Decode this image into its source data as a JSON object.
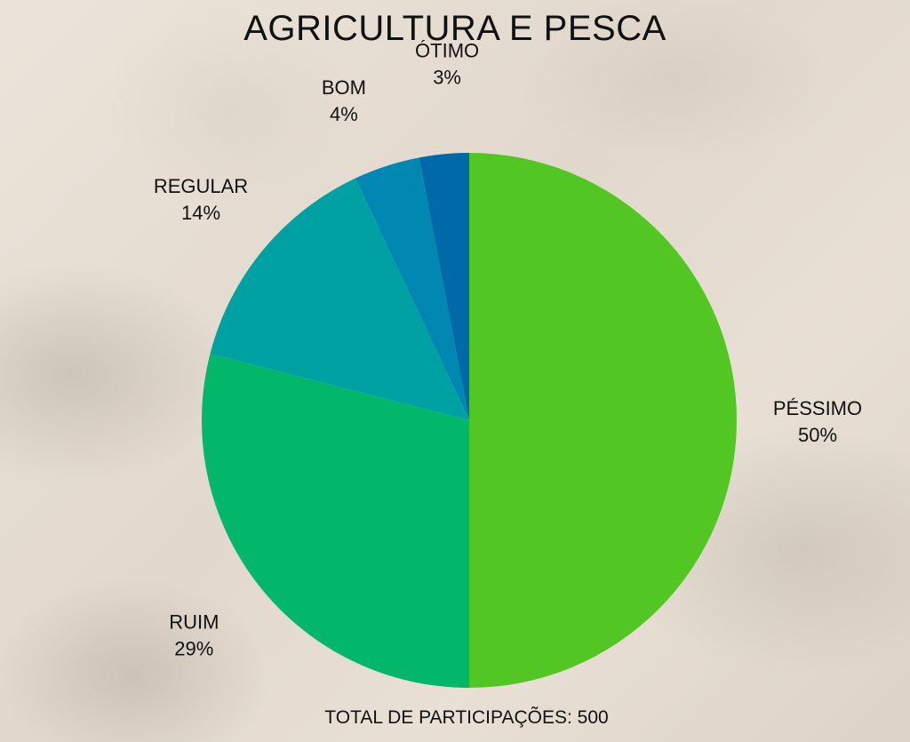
{
  "chart_data": {
    "type": "pie",
    "title": "AGRICULTURA E PESCA",
    "slices": [
      {
        "label": "PÉSSIMO",
        "value": 50,
        "value_label": "50%",
        "color": "#52c622"
      },
      {
        "label": "RUIM",
        "value": 29,
        "value_label": "29%",
        "color": "#02b76a"
      },
      {
        "label": "REGULAR",
        "value": 14,
        "value_label": "14%",
        "color": "#00a1a3"
      },
      {
        "label": "BOM",
        "value": 4,
        "value_label": "4%",
        "color": "#0088b3"
      },
      {
        "label": "ÓTIMO",
        "value": 3,
        "value_label": "3%",
        "color": "#0069a8"
      }
    ],
    "footer": "TOTAL DE PARTICIPAÇÕES: 500"
  }
}
